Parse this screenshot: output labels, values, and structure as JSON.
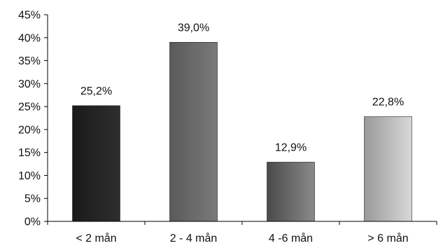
{
  "chart_data": {
    "type": "bar",
    "title": "",
    "xlabel": "",
    "ylabel": "",
    "categories": [
      "< 2 mån",
      "2 - 4 mån",
      "4 -6 mån",
      "> 6 mån"
    ],
    "values": [
      25.2,
      39.0,
      12.9,
      22.8
    ],
    "value_labels": [
      "25,2%",
      "39,0%",
      "12,9%",
      "22,8%"
    ],
    "ylim": [
      0,
      45
    ],
    "yticks": [
      0,
      5,
      10,
      15,
      20,
      25,
      30,
      35,
      40,
      45
    ],
    "ytick_labels": [
      "0%",
      "5%",
      "10%",
      "15%",
      "20%",
      "25%",
      "30%",
      "35%",
      "40%",
      "45%"
    ],
    "grid": false,
    "legend": "none",
    "bar_colors": [
      [
        "#1a1a1a",
        "#2e2e2e"
      ],
      [
        "#5a5a5a",
        "#7a7a7a"
      ],
      [
        "#4a4a4a",
        "#8a8a8a"
      ],
      [
        "#9a9a9a",
        "#d8d8d8"
      ]
    ]
  }
}
